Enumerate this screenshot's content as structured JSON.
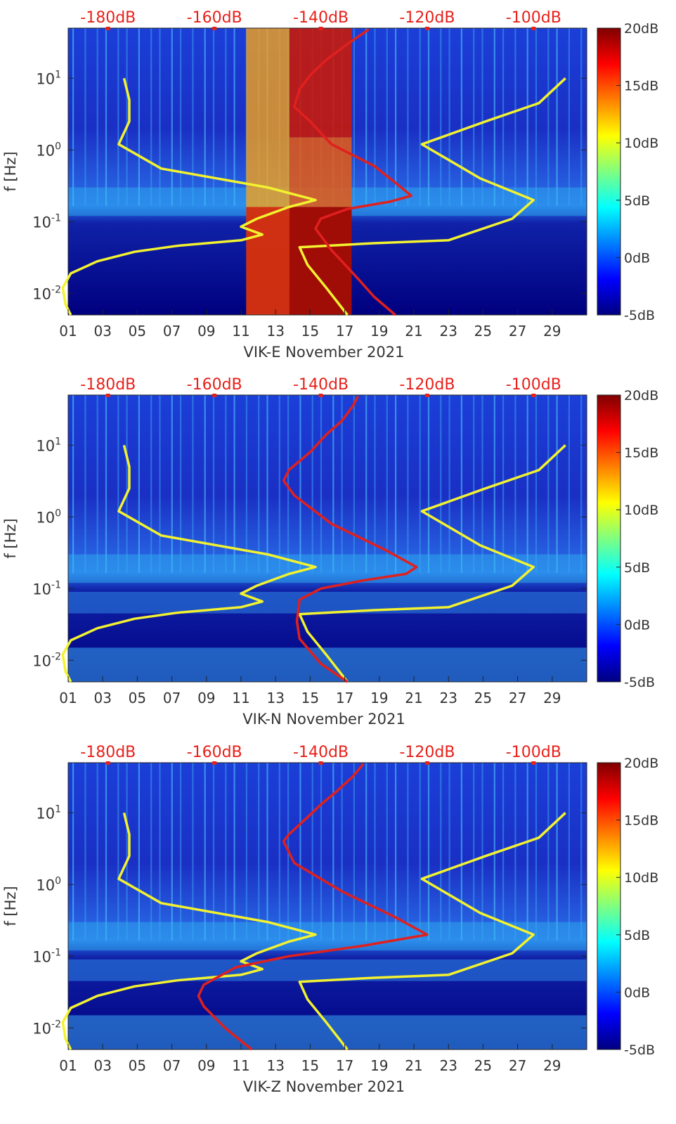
{
  "figure": {
    "month_label": "November 2021"
  },
  "colors": {
    "yellow_curve": "#f2f230",
    "red_curve": "#e0201e",
    "top_axis_text": "#e8201a",
    "background_spectrum_low": "#00007f",
    "background_spectrum_high": "#7f0000"
  },
  "chart_data": [
    {
      "type": "heatmap",
      "title": "",
      "station": "VIK-E",
      "xlabel": "VIK-E November 2021",
      "ylabel": "f [Hz]",
      "x_ticks": [
        "01",
        "03",
        "05",
        "07",
        "09",
        "11",
        "13",
        "15",
        "17",
        "19",
        "21",
        "23",
        "25",
        "27",
        "29"
      ],
      "x_range_days": [
        1,
        31
      ],
      "y_scale": "log",
      "y_range_hz": [
        0.005,
        50
      ],
      "y_ticks": [
        {
          "value": 0.01,
          "base": "10",
          "exp": "-2"
        },
        {
          "value": 0.1,
          "base": "10",
          "exp": "-1"
        },
        {
          "value": 1,
          "base": "10",
          "exp": "0"
        },
        {
          "value": 10,
          "base": "10",
          "exp": "1"
        }
      ],
      "top_axis_ticks": [
        "-180dB",
        "-160dB",
        "-140dB",
        "-120dB",
        "-100dB"
      ],
      "top_axis_range_db": [
        -187.5,
        -90
      ],
      "colorbar_ticks": [
        "20dB",
        "15dB",
        "10dB",
        "5dB",
        "0dB",
        "-5dB"
      ],
      "colorbar_range_db": [
        -5,
        20
      ],
      "series": [
        {
          "name": "yellow noise model (low)",
          "color": "yellow",
          "points": [
            [
              -187,
              0.005
            ],
            [
              -188,
              0.007
            ],
            [
              -188.5,
              0.012
            ],
            [
              -187,
              0.019
            ],
            [
              -182,
              0.028
            ],
            [
              -175,
              0.038
            ],
            [
              -167,
              0.046
            ],
            [
              -155,
              0.055
            ],
            [
              -151,
              0.066
            ],
            [
              -155,
              0.085
            ],
            [
              -152,
              0.11
            ],
            [
              -146,
              0.16
            ],
            [
              -141,
              0.2
            ],
            [
              -150,
              0.3
            ],
            [
              -170,
              0.55
            ],
            [
              -178,
              1.2
            ],
            [
              -176,
              2.5
            ],
            [
              -176,
              5
            ],
            [
              -177,
              10
            ]
          ]
        },
        {
          "name": "yellow noise model (high)",
          "color": "yellow",
          "points": [
            [
              -135,
              0.005
            ],
            [
              -139,
              0.012
            ],
            [
              -142.5,
              0.025
            ],
            [
              -144,
              0.044
            ],
            [
              -130,
              0.05
            ],
            [
              -116,
              0.055
            ],
            [
              -104,
              0.11
            ],
            [
              -100,
              0.2
            ],
            [
              -110,
              0.4
            ],
            [
              -121,
              1.2
            ],
            [
              -109,
              2.5
            ],
            [
              -99,
              4.5
            ],
            [
              -94,
              10
            ]
          ]
        },
        {
          "name": "red PSD percentile",
          "color": "red",
          "points": [
            [
              -126,
              0.005
            ],
            [
              -130,
              0.009
            ],
            [
              -133,
              0.016
            ],
            [
              -138,
              0.04
            ],
            [
              -141,
              0.08
            ],
            [
              -140,
              0.11
            ],
            [
              -135,
              0.15
            ],
            [
              -127,
              0.19
            ],
            [
              -123,
              0.23
            ],
            [
              -126,
              0.35
            ],
            [
              -130,
              0.6
            ],
            [
              -138,
              1.2
            ],
            [
              -142,
              2.5
            ],
            [
              -145,
              4
            ],
            [
              -144,
              7
            ],
            [
              -142,
              11
            ],
            [
              -139,
              18
            ],
            [
              -135,
              30
            ],
            [
              -131,
              48
            ]
          ]
        }
      ]
    },
    {
      "type": "heatmap",
      "title": "",
      "station": "VIK-N",
      "xlabel": "VIK-N November 2021",
      "ylabel": "f [Hz]",
      "x_ticks": [
        "01",
        "03",
        "05",
        "07",
        "09",
        "11",
        "13",
        "15",
        "17",
        "19",
        "21",
        "23",
        "25",
        "27",
        "29"
      ],
      "x_range_days": [
        1,
        31
      ],
      "y_scale": "log",
      "y_range_hz": [
        0.005,
        50
      ],
      "y_ticks": [
        {
          "value": 0.01,
          "base": "10",
          "exp": "-2"
        },
        {
          "value": 0.1,
          "base": "10",
          "exp": "-1"
        },
        {
          "value": 1,
          "base": "10",
          "exp": "0"
        },
        {
          "value": 10,
          "base": "10",
          "exp": "1"
        }
      ],
      "top_axis_ticks": [
        "-180dB",
        "-160dB",
        "-140dB",
        "-120dB",
        "-100dB"
      ],
      "top_axis_range_db": [
        -187.5,
        -90
      ],
      "colorbar_ticks": [
        "20dB",
        "15dB",
        "10dB",
        "5dB",
        "0dB",
        "-5dB"
      ],
      "colorbar_range_db": [
        -5,
        20
      ],
      "series": [
        {
          "name": "yellow noise model (low)",
          "color": "yellow",
          "points": [
            [
              -187,
              0.005
            ],
            [
              -188,
              0.007
            ],
            [
              -188.5,
              0.012
            ],
            [
              -187,
              0.019
            ],
            [
              -182,
              0.028
            ],
            [
              -175,
              0.038
            ],
            [
              -167,
              0.046
            ],
            [
              -155,
              0.055
            ],
            [
              -151,
              0.066
            ],
            [
              -155,
              0.085
            ],
            [
              -152,
              0.11
            ],
            [
              -146,
              0.16
            ],
            [
              -141,
              0.2
            ],
            [
              -150,
              0.3
            ],
            [
              -170,
              0.55
            ],
            [
              -178,
              1.2
            ],
            [
              -176,
              2.5
            ],
            [
              -176,
              5
            ],
            [
              -177,
              10
            ]
          ]
        },
        {
          "name": "yellow noise model (high)",
          "color": "yellow",
          "points": [
            [
              -135,
              0.005
            ],
            [
              -139,
              0.012
            ],
            [
              -142.5,
              0.025
            ],
            [
              -144,
              0.044
            ],
            [
              -130,
              0.05
            ],
            [
              -116,
              0.055
            ],
            [
              -104,
              0.11
            ],
            [
              -100,
              0.2
            ],
            [
              -110,
              0.4
            ],
            [
              -121,
              1.2
            ],
            [
              -109,
              2.5
            ],
            [
              -99,
              4.5
            ],
            [
              -94,
              10
            ]
          ]
        },
        {
          "name": "red PSD percentile",
          "color": "red",
          "points": [
            [
              -135,
              0.005
            ],
            [
              -140,
              0.009
            ],
            [
              -144,
              0.02
            ],
            [
              -144.5,
              0.035
            ],
            [
              -144,
              0.07
            ],
            [
              -140,
              0.1
            ],
            [
              -132,
              0.13
            ],
            [
              -124,
              0.16
            ],
            [
              -122,
              0.2
            ],
            [
              -128,
              0.35
            ],
            [
              -138,
              0.8
            ],
            [
              -145,
              2
            ],
            [
              -147,
              3.2
            ],
            [
              -146,
              4.5
            ],
            [
              -142,
              8
            ],
            [
              -139,
              14
            ],
            [
              -136,
              22
            ],
            [
              -134,
              35
            ],
            [
              -133,
              48
            ]
          ]
        }
      ]
    },
    {
      "type": "heatmap",
      "title": "",
      "station": "VIK-Z",
      "xlabel": "VIK-Z November 2021",
      "ylabel": "f [Hz]",
      "x_ticks": [
        "01",
        "03",
        "05",
        "07",
        "09",
        "11",
        "13",
        "15",
        "17",
        "19",
        "21",
        "23",
        "25",
        "27",
        "29"
      ],
      "x_range_days": [
        1,
        31
      ],
      "y_scale": "log",
      "y_range_hz": [
        0.005,
        50
      ],
      "y_ticks": [
        {
          "value": 0.01,
          "base": "10",
          "exp": "-2"
        },
        {
          "value": 0.1,
          "base": "10",
          "exp": "-1"
        },
        {
          "value": 1,
          "base": "10",
          "exp": "0"
        },
        {
          "value": 10,
          "base": "10",
          "exp": "1"
        }
      ],
      "top_axis_ticks": [
        "-180dB",
        "-160dB",
        "-140dB",
        "-120dB",
        "-100dB"
      ],
      "top_axis_range_db": [
        -187.5,
        -90
      ],
      "colorbar_ticks": [
        "20dB",
        "15dB",
        "10dB",
        "5dB",
        "0dB",
        "-5dB"
      ],
      "colorbar_range_db": [
        -5,
        20
      ],
      "series": [
        {
          "name": "yellow noise model (low)",
          "color": "yellow",
          "points": [
            [
              -187,
              0.005
            ],
            [
              -188,
              0.007
            ],
            [
              -188.5,
              0.012
            ],
            [
              -187,
              0.019
            ],
            [
              -182,
              0.028
            ],
            [
              -175,
              0.038
            ],
            [
              -167,
              0.046
            ],
            [
              -155,
              0.055
            ],
            [
              -151,
              0.066
            ],
            [
              -155,
              0.085
            ],
            [
              -152,
              0.11
            ],
            [
              -146,
              0.16
            ],
            [
              -141,
              0.2
            ],
            [
              -150,
              0.3
            ],
            [
              -170,
              0.55
            ],
            [
              -178,
              1.2
            ],
            [
              -176,
              2.5
            ],
            [
              -176,
              5
            ],
            [
              -177,
              10
            ]
          ]
        },
        {
          "name": "yellow noise model (high)",
          "color": "yellow",
          "points": [
            [
              -135,
              0.005
            ],
            [
              -139,
              0.012
            ],
            [
              -142.5,
              0.025
            ],
            [
              -144,
              0.044
            ],
            [
              -130,
              0.05
            ],
            [
              -116,
              0.055
            ],
            [
              -104,
              0.11
            ],
            [
              -100,
              0.2
            ],
            [
              -110,
              0.4
            ],
            [
              -121,
              1.2
            ],
            [
              -109,
              2.5
            ],
            [
              -99,
              4.5
            ],
            [
              -94,
              10
            ]
          ]
        },
        {
          "name": "red PSD percentile",
          "color": "red",
          "points": [
            [
              -153,
              0.005
            ],
            [
              -158,
              0.01
            ],
            [
              -162,
              0.02
            ],
            [
              -163,
              0.028
            ],
            [
              -162,
              0.04
            ],
            [
              -156,
              0.07
            ],
            [
              -146,
              0.1
            ],
            [
              -132,
              0.14
            ],
            [
              -120,
              0.2
            ],
            [
              -126,
              0.35
            ],
            [
              -136,
              0.8
            ],
            [
              -145,
              2
            ],
            [
              -147,
              4
            ],
            [
              -146,
              5
            ],
            [
              -143,
              8
            ],
            [
              -140,
              13
            ],
            [
              -137,
              20
            ],
            [
              -134,
              32
            ],
            [
              -132,
              48
            ]
          ]
        }
      ]
    }
  ]
}
